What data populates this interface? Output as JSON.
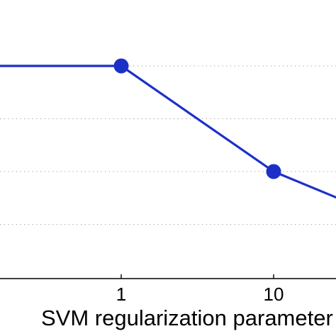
{
  "chart_data": {
    "type": "line",
    "x_scale": "log",
    "xlabel": "SVM regularization parameter",
    "ylabel": "",
    "title": "",
    "grid": "horizontal dotted",
    "x_ticks": [
      {
        "value": 0.1,
        "label": ""
      },
      {
        "value": 1,
        "label": "1"
      },
      {
        "value": 10,
        "label": "10"
      }
    ],
    "y_gridlines": [
      4,
      3,
      2,
      1
    ],
    "xlim": [
      0.1,
      35
    ],
    "ylim": [
      0,
      4.5
    ],
    "series": [
      {
        "color": "#1c30c8",
        "marker": "circle",
        "x": [
          0.1,
          1,
          10,
          35
        ],
        "y": [
          4,
          4,
          2,
          1.35
        ]
      }
    ]
  }
}
